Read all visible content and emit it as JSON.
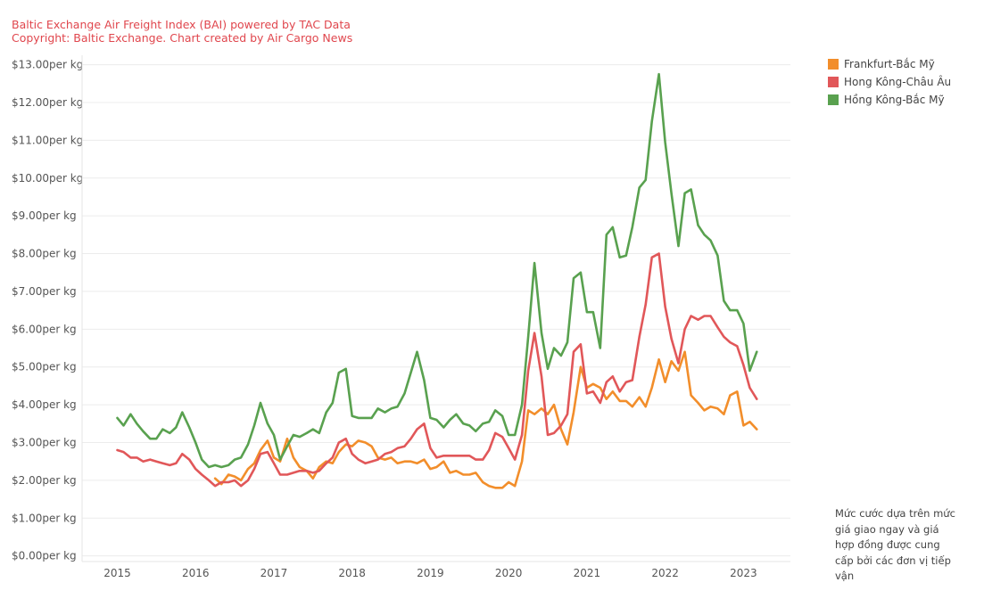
{
  "source": {
    "line1": "Baltic Exchange Air Freight Index (BAI) powered by TAC Data",
    "line2": "Copyright: Baltic Exchange. Chart created by Air Cargo News"
  },
  "note": "Mức cước dựa trên mức giá giao ngay và giá hợp đồng được cung cấp bởi các đơn vị tiếp vận",
  "chart_data": {
    "type": "line",
    "title": "",
    "xlabel": "",
    "ylabel": "",
    "xlim": [
      2014.55,
      2023.6
    ],
    "ylim": [
      -0.15,
      13.25
    ],
    "grid": "horizontal",
    "legend_position": "top-right",
    "x_ticks": [
      "2015",
      "2016",
      "2017",
      "2018",
      "2019",
      "2020",
      "2021",
      "2022",
      "2023"
    ],
    "y_ticks": [
      "$0.00per kg",
      "$1.00per kg",
      "$2.00per kg",
      "$3.00per kg",
      "$4.00per kg",
      "$5.00per kg",
      "$6.00per kg",
      "$7.00per kg",
      "$8.00per kg",
      "$9.00per kg",
      "$10.00per kg",
      "$11.00per kg",
      "$12.00per kg",
      "$13.00per kg"
    ],
    "series": [
      {
        "name": "Frankfurt-Bắc Mỹ",
        "color": "#f28e2b",
        "points": [
          [
            2016.25,
            2.05
          ],
          [
            2016.33,
            1.9
          ],
          [
            2016.42,
            2.15
          ],
          [
            2016.5,
            2.1
          ],
          [
            2016.58,
            2.0
          ],
          [
            2016.67,
            2.3
          ],
          [
            2016.75,
            2.45
          ],
          [
            2016.83,
            2.8
          ],
          [
            2016.92,
            3.05
          ],
          [
            2017.0,
            2.6
          ],
          [
            2017.08,
            2.5
          ],
          [
            2017.17,
            3.1
          ],
          [
            2017.25,
            2.6
          ],
          [
            2017.33,
            2.35
          ],
          [
            2017.42,
            2.25
          ],
          [
            2017.5,
            2.05
          ],
          [
            2017.58,
            2.35
          ],
          [
            2017.67,
            2.5
          ],
          [
            2017.75,
            2.45
          ],
          [
            2017.83,
            2.75
          ],
          [
            2017.92,
            2.95
          ],
          [
            2018.0,
            2.9
          ],
          [
            2018.08,
            3.05
          ],
          [
            2018.17,
            3.0
          ],
          [
            2018.25,
            2.9
          ],
          [
            2018.33,
            2.6
          ],
          [
            2018.42,
            2.55
          ],
          [
            2018.5,
            2.6
          ],
          [
            2018.58,
            2.45
          ],
          [
            2018.67,
            2.5
          ],
          [
            2018.75,
            2.5
          ],
          [
            2018.83,
            2.45
          ],
          [
            2018.92,
            2.55
          ],
          [
            2019.0,
            2.3
          ],
          [
            2019.08,
            2.35
          ],
          [
            2019.17,
            2.5
          ],
          [
            2019.25,
            2.2
          ],
          [
            2019.33,
            2.25
          ],
          [
            2019.42,
            2.15
          ],
          [
            2019.5,
            2.15
          ],
          [
            2019.58,
            2.2
          ],
          [
            2019.67,
            1.95
          ],
          [
            2019.75,
            1.85
          ],
          [
            2019.83,
            1.8
          ],
          [
            2019.92,
            1.8
          ],
          [
            2020.0,
            1.95
          ],
          [
            2020.08,
            1.85
          ],
          [
            2020.17,
            2.5
          ],
          [
            2020.25,
            3.85
          ],
          [
            2020.33,
            3.75
          ],
          [
            2020.42,
            3.9
          ],
          [
            2020.5,
            3.75
          ],
          [
            2020.58,
            4.0
          ],
          [
            2020.67,
            3.35
          ],
          [
            2020.75,
            2.95
          ],
          [
            2020.83,
            3.8
          ],
          [
            2020.92,
            5.0
          ],
          [
            2021.0,
            4.45
          ],
          [
            2021.08,
            4.55
          ],
          [
            2021.17,
            4.45
          ],
          [
            2021.25,
            4.15
          ],
          [
            2021.33,
            4.35
          ],
          [
            2021.42,
            4.1
          ],
          [
            2021.5,
            4.1
          ],
          [
            2021.58,
            3.95
          ],
          [
            2021.67,
            4.2
          ],
          [
            2021.75,
            3.95
          ],
          [
            2021.83,
            4.45
          ],
          [
            2021.92,
            5.2
          ],
          [
            2022.0,
            4.6
          ],
          [
            2022.08,
            5.15
          ],
          [
            2022.17,
            4.9
          ],
          [
            2022.25,
            5.4
          ],
          [
            2022.33,
            4.25
          ],
          [
            2022.42,
            4.05
          ],
          [
            2022.5,
            3.85
          ],
          [
            2022.58,
            3.95
          ],
          [
            2022.67,
            3.9
          ],
          [
            2022.75,
            3.75
          ],
          [
            2022.83,
            4.25
          ],
          [
            2022.92,
            4.35
          ],
          [
            2023.0,
            3.45
          ],
          [
            2023.08,
            3.55
          ],
          [
            2023.17,
            3.35
          ]
        ]
      },
      {
        "name": "Hong Kông-Châu Âu",
        "color": "#e15759",
        "points": [
          [
            2015.0,
            2.8
          ],
          [
            2015.08,
            2.75
          ],
          [
            2015.17,
            2.6
          ],
          [
            2015.25,
            2.6
          ],
          [
            2015.33,
            2.5
          ],
          [
            2015.42,
            2.55
          ],
          [
            2015.5,
            2.5
          ],
          [
            2015.58,
            2.45
          ],
          [
            2015.67,
            2.4
          ],
          [
            2015.75,
            2.45
          ],
          [
            2015.83,
            2.7
          ],
          [
            2015.92,
            2.55
          ],
          [
            2016.0,
            2.3
          ],
          [
            2016.08,
            2.15
          ],
          [
            2016.17,
            2.0
          ],
          [
            2016.25,
            1.85
          ],
          [
            2016.33,
            1.95
          ],
          [
            2016.42,
            1.95
          ],
          [
            2016.5,
            2.0
          ],
          [
            2016.58,
            1.85
          ],
          [
            2016.67,
            2.0
          ],
          [
            2016.75,
            2.3
          ],
          [
            2016.83,
            2.7
          ],
          [
            2016.92,
            2.75
          ],
          [
            2017.0,
            2.45
          ],
          [
            2017.08,
            2.15
          ],
          [
            2017.17,
            2.15
          ],
          [
            2017.25,
            2.2
          ],
          [
            2017.33,
            2.25
          ],
          [
            2017.42,
            2.25
          ],
          [
            2017.5,
            2.2
          ],
          [
            2017.58,
            2.25
          ],
          [
            2017.67,
            2.45
          ],
          [
            2017.75,
            2.6
          ],
          [
            2017.83,
            3.0
          ],
          [
            2017.92,
            3.1
          ],
          [
            2018.0,
            2.7
          ],
          [
            2018.08,
            2.55
          ],
          [
            2018.17,
            2.45
          ],
          [
            2018.25,
            2.5
          ],
          [
            2018.33,
            2.55
          ],
          [
            2018.42,
            2.7
          ],
          [
            2018.5,
            2.75
          ],
          [
            2018.58,
            2.85
          ],
          [
            2018.67,
            2.9
          ],
          [
            2018.75,
            3.1
          ],
          [
            2018.83,
            3.35
          ],
          [
            2018.92,
            3.5
          ],
          [
            2019.0,
            2.85
          ],
          [
            2019.08,
            2.6
          ],
          [
            2019.17,
            2.65
          ],
          [
            2019.25,
            2.65
          ],
          [
            2019.33,
            2.65
          ],
          [
            2019.42,
            2.65
          ],
          [
            2019.5,
            2.65
          ],
          [
            2019.58,
            2.55
          ],
          [
            2019.67,
            2.55
          ],
          [
            2019.75,
            2.8
          ],
          [
            2019.83,
            3.25
          ],
          [
            2019.92,
            3.15
          ],
          [
            2020.0,
            2.85
          ],
          [
            2020.08,
            2.55
          ],
          [
            2020.17,
            3.2
          ],
          [
            2020.25,
            4.9
          ],
          [
            2020.33,
            5.9
          ],
          [
            2020.42,
            4.75
          ],
          [
            2020.5,
            3.2
          ],
          [
            2020.58,
            3.25
          ],
          [
            2020.67,
            3.45
          ],
          [
            2020.75,
            3.75
          ],
          [
            2020.83,
            5.4
          ],
          [
            2020.92,
            5.6
          ],
          [
            2021.0,
            4.3
          ],
          [
            2021.08,
            4.35
          ],
          [
            2021.17,
            4.05
          ],
          [
            2021.25,
            4.6
          ],
          [
            2021.33,
            4.75
          ],
          [
            2021.42,
            4.35
          ],
          [
            2021.5,
            4.6
          ],
          [
            2021.58,
            4.65
          ],
          [
            2021.67,
            5.8
          ],
          [
            2021.75,
            6.65
          ],
          [
            2021.83,
            7.9
          ],
          [
            2021.92,
            8.0
          ],
          [
            2022.0,
            6.6
          ],
          [
            2022.08,
            5.75
          ],
          [
            2022.17,
            5.1
          ],
          [
            2022.25,
            6.0
          ],
          [
            2022.33,
            6.35
          ],
          [
            2022.42,
            6.25
          ],
          [
            2022.5,
            6.35
          ],
          [
            2022.58,
            6.35
          ],
          [
            2022.67,
            6.05
          ],
          [
            2022.75,
            5.8
          ],
          [
            2022.83,
            5.65
          ],
          [
            2022.92,
            5.55
          ],
          [
            2023.0,
            5.05
          ],
          [
            2023.08,
            4.45
          ],
          [
            2023.17,
            4.15
          ]
        ]
      },
      {
        "name": "Hồng Kông-Bắc Mỹ",
        "color": "#59a14f",
        "points": [
          [
            2015.0,
            3.65
          ],
          [
            2015.08,
            3.45
          ],
          [
            2015.17,
            3.75
          ],
          [
            2015.25,
            3.5
          ],
          [
            2015.33,
            3.3
          ],
          [
            2015.42,
            3.1
          ],
          [
            2015.5,
            3.1
          ],
          [
            2015.58,
            3.35
          ],
          [
            2015.67,
            3.25
          ],
          [
            2015.75,
            3.4
          ],
          [
            2015.83,
            3.8
          ],
          [
            2015.92,
            3.4
          ],
          [
            2016.0,
            3.0
          ],
          [
            2016.08,
            2.55
          ],
          [
            2016.17,
            2.35
          ],
          [
            2016.25,
            2.4
          ],
          [
            2016.33,
            2.35
          ],
          [
            2016.42,
            2.4
          ],
          [
            2016.5,
            2.55
          ],
          [
            2016.58,
            2.6
          ],
          [
            2016.67,
            2.95
          ],
          [
            2016.75,
            3.45
          ],
          [
            2016.83,
            4.05
          ],
          [
            2016.92,
            3.5
          ],
          [
            2017.0,
            3.2
          ],
          [
            2017.08,
            2.55
          ],
          [
            2017.17,
            2.9
          ],
          [
            2017.25,
            3.2
          ],
          [
            2017.33,
            3.15
          ],
          [
            2017.42,
            3.25
          ],
          [
            2017.5,
            3.35
          ],
          [
            2017.58,
            3.25
          ],
          [
            2017.67,
            3.8
          ],
          [
            2017.75,
            4.05
          ],
          [
            2017.83,
            4.85
          ],
          [
            2017.92,
            4.95
          ],
          [
            2018.0,
            3.7
          ],
          [
            2018.08,
            3.65
          ],
          [
            2018.17,
            3.65
          ],
          [
            2018.25,
            3.65
          ],
          [
            2018.33,
            3.9
          ],
          [
            2018.42,
            3.8
          ],
          [
            2018.5,
            3.9
          ],
          [
            2018.58,
            3.95
          ],
          [
            2018.67,
            4.3
          ],
          [
            2018.75,
            4.85
          ],
          [
            2018.83,
            5.4
          ],
          [
            2018.92,
            4.65
          ],
          [
            2019.0,
            3.65
          ],
          [
            2019.08,
            3.6
          ],
          [
            2019.17,
            3.4
          ],
          [
            2019.25,
            3.6
          ],
          [
            2019.33,
            3.75
          ],
          [
            2019.42,
            3.5
          ],
          [
            2019.5,
            3.45
          ],
          [
            2019.58,
            3.3
          ],
          [
            2019.67,
            3.5
          ],
          [
            2019.75,
            3.55
          ],
          [
            2019.83,
            3.85
          ],
          [
            2019.92,
            3.7
          ],
          [
            2020.0,
            3.2
          ],
          [
            2020.08,
            3.2
          ],
          [
            2020.17,
            4.0
          ],
          [
            2020.25,
            5.8
          ],
          [
            2020.33,
            7.75
          ],
          [
            2020.42,
            5.9
          ],
          [
            2020.5,
            4.95
          ],
          [
            2020.58,
            5.5
          ],
          [
            2020.67,
            5.3
          ],
          [
            2020.75,
            5.65
          ],
          [
            2020.83,
            7.35
          ],
          [
            2020.92,
            7.5
          ],
          [
            2021.0,
            6.45
          ],
          [
            2021.08,
            6.45
          ],
          [
            2021.17,
            5.5
          ],
          [
            2021.25,
            8.5
          ],
          [
            2021.33,
            8.7
          ],
          [
            2021.42,
            7.9
          ],
          [
            2021.5,
            7.95
          ],
          [
            2021.58,
            8.7
          ],
          [
            2021.67,
            9.75
          ],
          [
            2021.75,
            9.95
          ],
          [
            2021.83,
            11.5
          ],
          [
            2021.92,
            12.75
          ],
          [
            2022.0,
            10.95
          ],
          [
            2022.08,
            9.6
          ],
          [
            2022.17,
            8.2
          ],
          [
            2022.25,
            9.6
          ],
          [
            2022.33,
            9.7
          ],
          [
            2022.42,
            8.75
          ],
          [
            2022.5,
            8.5
          ],
          [
            2022.58,
            8.35
          ],
          [
            2022.67,
            7.95
          ],
          [
            2022.75,
            6.75
          ],
          [
            2022.83,
            6.5
          ],
          [
            2022.92,
            6.5
          ],
          [
            2023.0,
            6.15
          ],
          [
            2023.08,
            4.9
          ],
          [
            2023.17,
            5.4
          ]
        ]
      }
    ]
  }
}
